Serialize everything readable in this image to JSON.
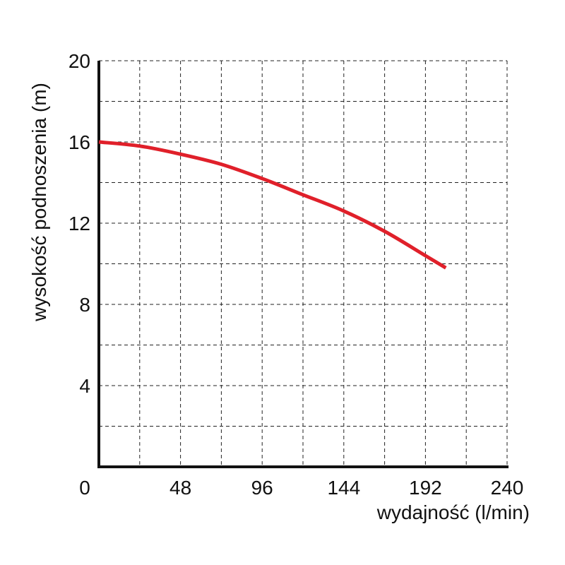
{
  "chart_data": {
    "type": "line",
    "xlabel": "wydajność (l/min)",
    "ylabel": "wysokość podnoszenia (m)",
    "xlim": [
      0,
      240
    ],
    "ylim": [
      0,
      20
    ],
    "x_ticks": [
      0,
      48,
      96,
      144,
      192,
      240
    ],
    "y_ticks": [
      4,
      8,
      12,
      16,
      20
    ],
    "grid": true,
    "series": [
      {
        "color": "#e0202a",
        "x": [
          0,
          24,
          48,
          72,
          96,
          120,
          144,
          168,
          192,
          204
        ],
        "y": [
          16.0,
          15.8,
          15.4,
          14.9,
          14.2,
          13.4,
          12.6,
          11.6,
          10.4,
          9.8
        ]
      }
    ]
  }
}
